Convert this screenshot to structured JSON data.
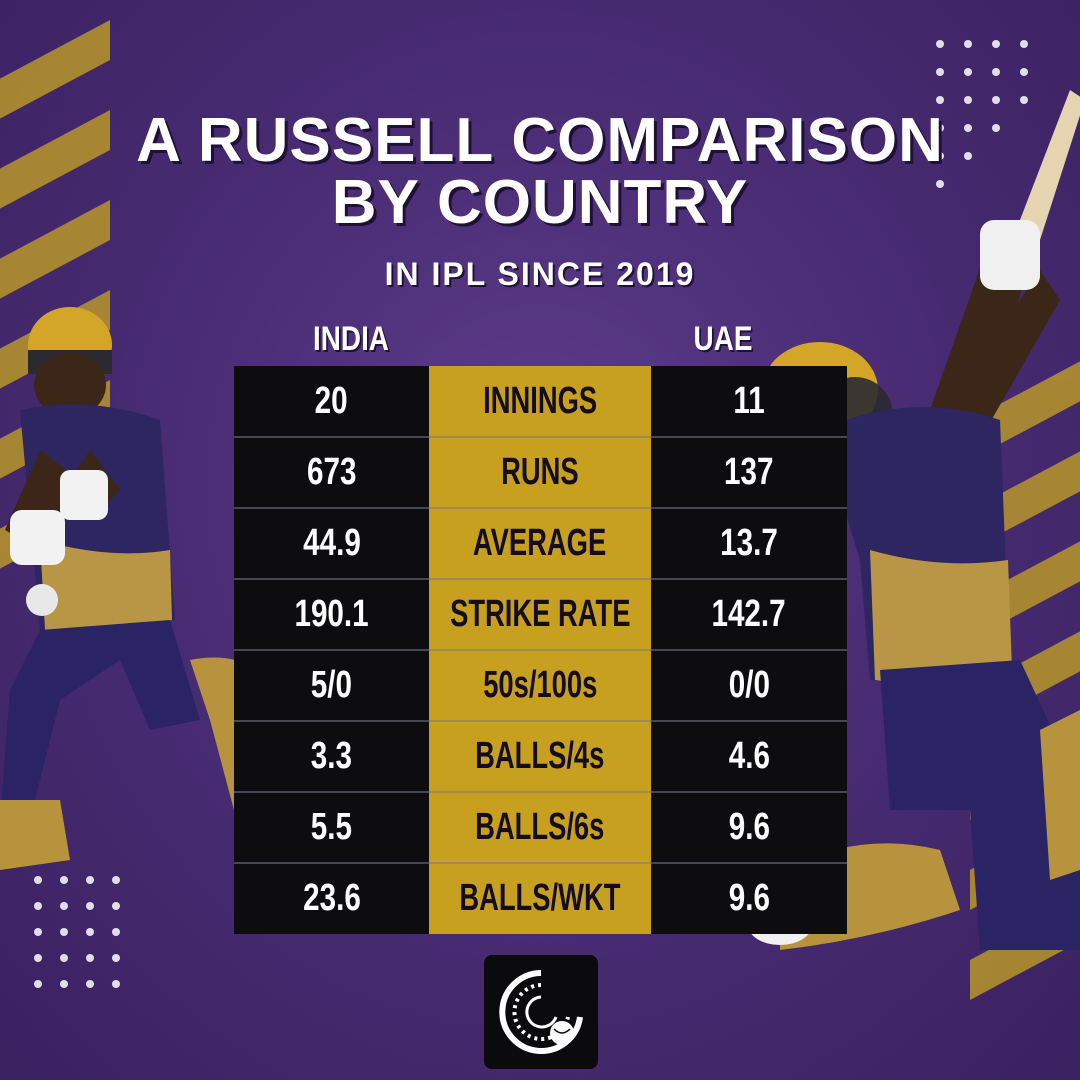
{
  "title": {
    "line1": "A RUSSELL COMPARISON",
    "line2": "BY COUNTRY",
    "subtitle": "IN IPL SINCE 2019"
  },
  "columns": {
    "left": "INDIA",
    "right": "UAE"
  },
  "rows": [
    {
      "stat": "INNINGS",
      "india": "20",
      "uae": "11"
    },
    {
      "stat": "RUNS",
      "india": "673",
      "uae": "137"
    },
    {
      "stat": "AVERAGE",
      "india": "44.9",
      "uae": "13.7"
    },
    {
      "stat": "STRIKE RATE",
      "india": "190.1",
      "uae": "142.7"
    },
    {
      "stat": "50s/100s",
      "india": "5/0",
      "uae": "0/0"
    },
    {
      "stat": "BALLS/4s",
      "india": "3.3",
      "uae": "4.6"
    },
    {
      "stat": "BALLS/6s",
      "india": "5.5",
      "uae": "9.6"
    },
    {
      "stat": "BALLS/WKT",
      "india": "23.6",
      "uae": "9.6"
    }
  ],
  "colors": {
    "background": "#4a2d75",
    "gold": "#c8a020",
    "table_black": "#0d0d0f",
    "text_white": "#ffffff"
  },
  "icons": {
    "logo": "cricket-ball-logo-icon",
    "players": [
      "player-batting-left-icon",
      "player-batting-right-icon"
    ]
  }
}
